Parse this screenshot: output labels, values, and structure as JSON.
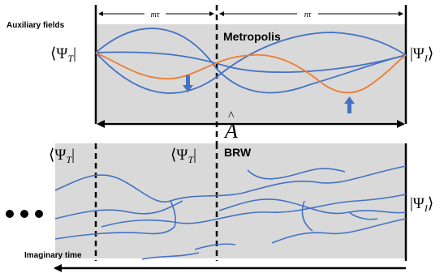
{
  "labels": {
    "auxiliary_fields": "Auxiliary fields",
    "m_tau": "mτ",
    "n_tau": "nτ",
    "metropolis": "Metropolis",
    "psi_t_left_top": "⟨Ψ_T|",
    "psi_i_right_top": "|Ψ_I⟩",
    "operator": "Â",
    "brw": "BRW",
    "psi_t_left_bottom": "⟨Ψ_T|",
    "psi_t_mid_bottom": "⟨Ψ_T|",
    "psi_i_right_bottom": "|Ψ_I⟩",
    "ellipsis": "●●●",
    "imaginary_time": "Imaginary time"
  },
  "colors": {
    "panel_fill": "#d9d9d9",
    "path_blue": "#4472c4",
    "path_orange": "#ed7d31",
    "arrow_fill": "#4472c4",
    "line": "#000000"
  }
}
